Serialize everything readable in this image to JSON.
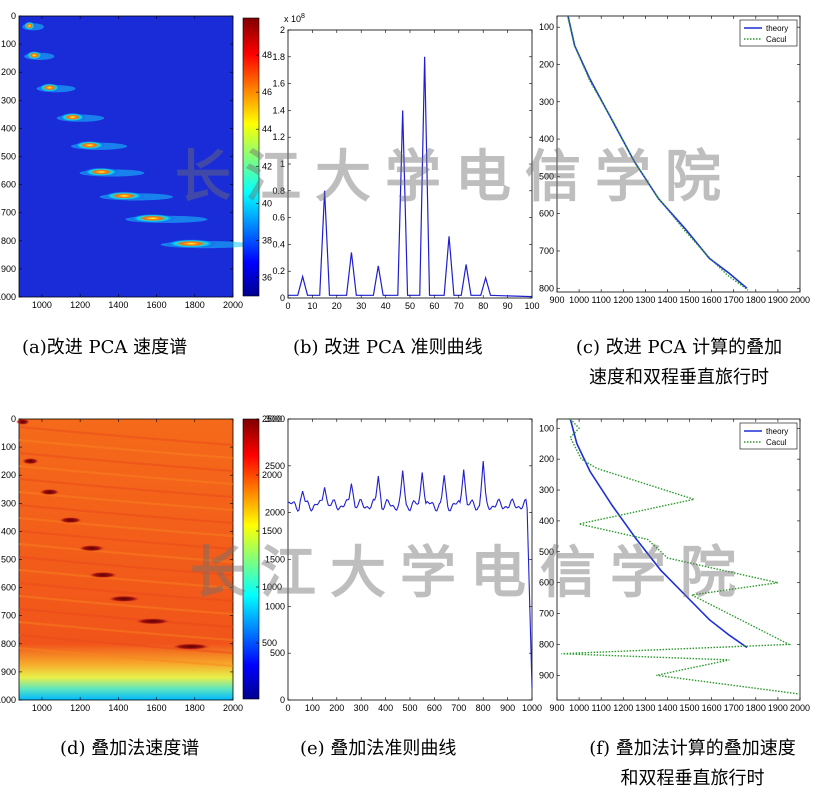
{
  "captions": {
    "a": "(a)改进 PCA 速度谱",
    "b": "(b) 改进 PCA 准则曲线",
    "c_line1": "(c) 改进 PCA 计算的叠加",
    "c_line2": "速度和双程垂直旅行时",
    "d": "(d) 叠加法速度谱",
    "e": "(e) 叠加法准则曲线",
    "f_line1": "(f) 叠加法计算的叠加速度",
    "f_line2": "和双程垂直旅行时"
  },
  "watermark": "长江大学电信学院",
  "chart_data": [
    {
      "id": "a",
      "type": "heatmap",
      "title": "",
      "xlabel": "",
      "ylabel": "",
      "xlim": [
        880,
        2000
      ],
      "ylim": [
        0,
        1000
      ],
      "y_reversed": true,
      "x_ticks": [
        "1000",
        "1200",
        "1400",
        "1600",
        "1800",
        "2000"
      ],
      "y_ticks": [
        "0",
        "100",
        "200",
        "300",
        "400",
        "500",
        "600",
        "700",
        "800",
        "900",
        "1000"
      ],
      "colorbar": {
        "range": [
          35,
          50
        ],
        "ticks": [
          "36",
          "38",
          "40",
          "42",
          "44",
          "46",
          "48"
        ],
        "colormap": "jet"
      },
      "background_level": 35,
      "hot_spots": [
        {
          "x": 935,
          "y": 35,
          "value": 45
        },
        {
          "x": 960,
          "y": 140,
          "value": 44
        },
        {
          "x": 1040,
          "y": 255,
          "value": 45
        },
        {
          "x": 1160,
          "y": 360,
          "value": 45
        },
        {
          "x": 1250,
          "y": 460,
          "value": 47
        },
        {
          "x": 1310,
          "y": 555,
          "value": 47
        },
        {
          "x": 1430,
          "y": 640,
          "value": 48
        },
        {
          "x": 1580,
          "y": 720,
          "value": 48
        },
        {
          "x": 1780,
          "y": 810,
          "value": 49
        }
      ]
    },
    {
      "id": "b",
      "type": "line",
      "title": "",
      "xlabel": "",
      "ylabel": "",
      "xlim": [
        0,
        100
      ],
      "ylim": [
        0,
        2
      ],
      "y_multiplier": "x 10^8",
      "x_ticks": [
        "0",
        "10",
        "20",
        "30",
        "40",
        "50",
        "60",
        "70",
        "80",
        "90",
        "100"
      ],
      "y_ticks": [
        "0",
        "0.2",
        "0.4",
        "0.6",
        "0.8",
        "1",
        "1.2",
        "1.4",
        "1.6",
        "1.8",
        "2"
      ],
      "color": "#1f1fd0",
      "peaks": [
        {
          "x": 6,
          "y": 0.16
        },
        {
          "x": 15,
          "y": 0.8
        },
        {
          "x": 26,
          "y": 0.34
        },
        {
          "x": 37,
          "y": 0.24
        },
        {
          "x": 47,
          "y": 1.4
        },
        {
          "x": 56,
          "y": 1.8
        },
        {
          "x": 66,
          "y": 0.46
        },
        {
          "x": 73,
          "y": 0.25
        },
        {
          "x": 81,
          "y": 0.15
        }
      ]
    },
    {
      "id": "c",
      "type": "line",
      "title": "",
      "xlabel": "",
      "ylabel": "",
      "xlim": [
        900,
        2000
      ],
      "ylim": [
        70,
        810
      ],
      "y_reversed": true,
      "x_ticks": [
        "900",
        "1000",
        "1100",
        "1200",
        "1300",
        "1400",
        "1500",
        "1600",
        "1700",
        "1800",
        "1900",
        "2000"
      ],
      "y_ticks": [
        "100",
        "200",
        "300",
        "400",
        "500",
        "600",
        "700",
        "800"
      ],
      "legend_position": "top-right",
      "series": [
        {
          "name": "theory",
          "color": "#1c2fd6",
          "style": "solid",
          "x": [
            950,
            980,
            1050,
            1150,
            1250,
            1360,
            1480,
            1590,
            1680,
            1760
          ],
          "y": [
            70,
            150,
            240,
            350,
            460,
            560,
            640,
            720,
            760,
            800
          ]
        },
        {
          "name": "Cacul",
          "color": "#2c9a2c",
          "style": "dotted",
          "x": [
            948,
            978,
            1050,
            1150,
            1252,
            1358,
            1478,
            1585,
            1672,
            1765
          ],
          "y": [
            70,
            148,
            245,
            348,
            462,
            558,
            645,
            715,
            765,
            805
          ]
        }
      ]
    },
    {
      "id": "d",
      "type": "heatmap",
      "title": "",
      "xlabel": "",
      "ylabel": "",
      "xlim": [
        880,
        2000
      ],
      "ylim": [
        0,
        1000
      ],
      "y_reversed": true,
      "x_ticks": [
        "1000",
        "1200",
        "1400",
        "1600",
        "1800",
        "2000"
      ],
      "y_ticks": [
        "0",
        "100",
        "200",
        "300",
        "400",
        "500",
        "600",
        "700",
        "800",
        "900",
        "1000"
      ],
      "colorbar": {
        "range": [
          0,
          2500
        ],
        "ticks": [
          "500",
          "1000",
          "1500",
          "2000",
          "2500"
        ],
        "colormap": "jet"
      },
      "background_level": 2150,
      "dark_spots": [
        {
          "x": 900,
          "y": 10
        },
        {
          "x": 940,
          "y": 150
        },
        {
          "x": 1040,
          "y": 260
        },
        {
          "x": 1150,
          "y": 360
        },
        {
          "x": 1260,
          "y": 460
        },
        {
          "x": 1320,
          "y": 555
        },
        {
          "x": 1430,
          "y": 640
        },
        {
          "x": 1580,
          "y": 720
        },
        {
          "x": 1780,
          "y": 810
        }
      ]
    },
    {
      "id": "e",
      "type": "line",
      "title": "",
      "xlabel": "",
      "ylabel": "",
      "xlim": [
        0,
        1000
      ],
      "ylim": [
        0,
        3000
      ],
      "x_ticks": [
        "0",
        "100",
        "200",
        "300",
        "400",
        "500",
        "600",
        "700",
        "800",
        "900",
        "1000"
      ],
      "y_ticks": [
        "0",
        "500",
        "1000",
        "1500",
        "2000",
        "2500",
        "3000"
      ],
      "color": "#1f1fd0",
      "baseline": 2080,
      "peaks": [
        {
          "x": 60,
          "y": 2230
        },
        {
          "x": 150,
          "y": 2270
        },
        {
          "x": 260,
          "y": 2310
        },
        {
          "x": 370,
          "y": 2390
        },
        {
          "x": 470,
          "y": 2450
        },
        {
          "x": 550,
          "y": 2430
        },
        {
          "x": 640,
          "y": 2400
        },
        {
          "x": 720,
          "y": 2460
        },
        {
          "x": 800,
          "y": 2550
        }
      ],
      "tail": [
        {
          "x": 980,
          "y": 2050
        },
        {
          "x": 1000,
          "y": 130
        }
      ]
    },
    {
      "id": "f",
      "type": "line",
      "title": "",
      "xlabel": "",
      "ylabel": "",
      "xlim": [
        900,
        2000
      ],
      "ylim": [
        70,
        980
      ],
      "y_reversed": true,
      "x_ticks": [
        "900",
        "1000",
        "1100",
        "1200",
        "1300",
        "1400",
        "1500",
        "1600",
        "1700",
        "1800",
        "1900",
        "2000"
      ],
      "y_ticks": [
        "100",
        "200",
        "300",
        "400",
        "500",
        "600",
        "700",
        "800",
        "900"
      ],
      "legend_position": "top-right",
      "series": [
        {
          "name": "theory",
          "color": "#1c2fd6",
          "style": "solid",
          "x": [
            960,
            990,
            1050,
            1150,
            1260,
            1370,
            1480,
            1590,
            1680,
            1760
          ],
          "y": [
            70,
            150,
            240,
            350,
            460,
            560,
            640,
            720,
            770,
            810
          ]
        },
        {
          "name": "Cacul",
          "color": "#2c9a2c",
          "style": "dotted",
          "x": [
            960,
            1000,
            960,
            1010,
            1080,
            1520,
            1000,
            1310,
            1400,
            1900,
            1510,
            1950,
            920,
            1680,
            1350,
            1990
          ],
          "y": [
            70,
            100,
            130,
            200,
            230,
            330,
            410,
            460,
            520,
            600,
            640,
            800,
            830,
            850,
            900,
            960
          ]
        }
      ]
    }
  ]
}
